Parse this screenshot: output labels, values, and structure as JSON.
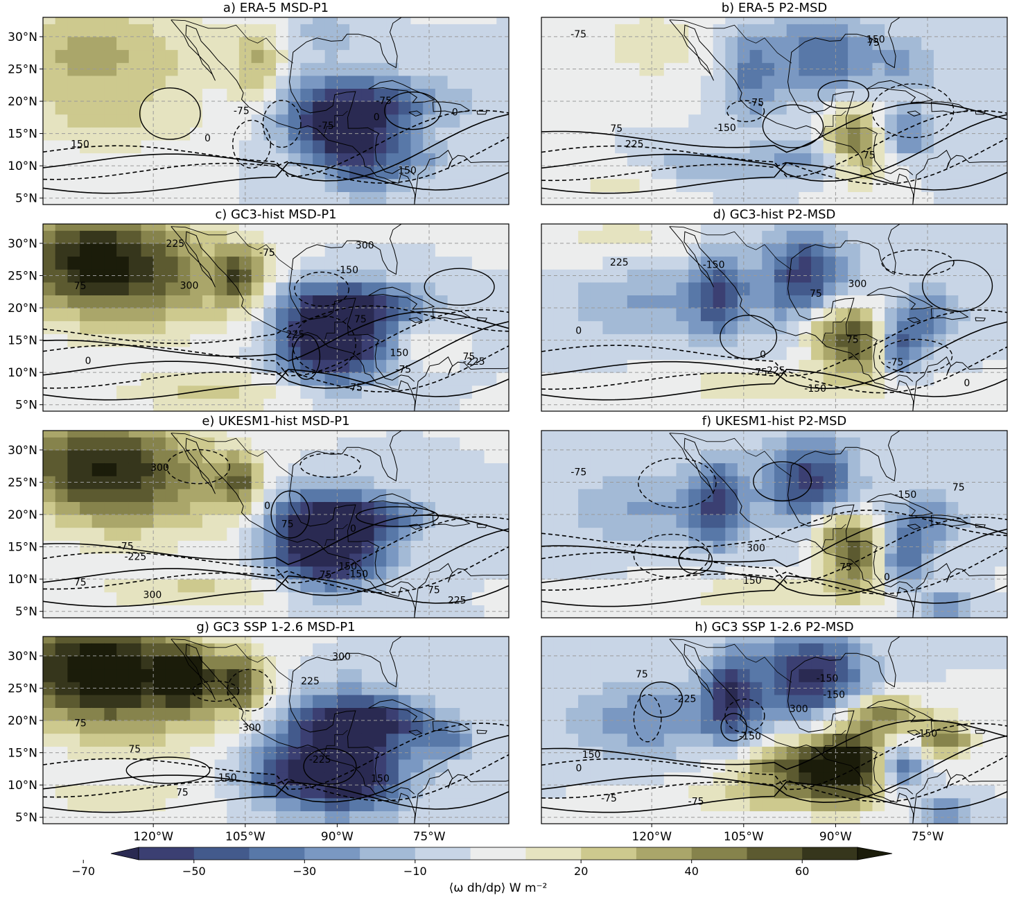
{
  "chart_data": {
    "type": "heatmap",
    "figure_description_free": true,
    "panels": [
      {
        "title": "a) ERA-5 MSD-P1",
        "contour_labels": [
          "150",
          "0",
          "150",
          "-75",
          "-75",
          "0",
          "0",
          "-75"
        ]
      },
      {
        "title": "b) ERA-5 P2-MSD",
        "contour_labels": [
          "-75",
          "225",
          "150",
          "-150",
          "-75",
          "75",
          "75",
          "75"
        ]
      },
      {
        "title": "c) GC3-hist MSD-P1",
        "contour_labels": [
          "75",
          "75",
          "-150",
          "-225",
          "300",
          "300",
          "225",
          "150",
          "225",
          "75",
          "0",
          "-75",
          "-75",
          "-75"
        ]
      },
      {
        "title": "d) GC3-hist P2-MSD",
        "contour_labels": [
          "0",
          "-75",
          "75",
          "-150",
          "225",
          "300",
          "-150",
          "-225",
          "0",
          "75",
          "-75",
          "0"
        ]
      },
      {
        "title": "e) UKESM1-hist MSD-P1",
        "contour_labels": [
          "75",
          "75",
          "75",
          "300",
          "225",
          "0",
          "-225",
          "300",
          "-150",
          "150",
          "75",
          "-75",
          "0"
        ]
      },
      {
        "title": "f) UKESM1-hist P2-MSD",
        "contour_labels": [
          "-75",
          "150",
          "300",
          "-150",
          "0",
          "75",
          "75"
        ]
      },
      {
        "title": "g) GC3 SSP 1-2.6 MSD-P1",
        "contour_labels": [
          "75",
          "75",
          "150",
          "-300",
          "-225",
          "300",
          "150",
          "225",
          "75"
        ]
      },
      {
        "title": "h) GC3 SSP 1-2.6 P2-MSD",
        "contour_labels": [
          "0",
          "-75",
          "-75",
          "150",
          "-150",
          "-150",
          "300",
          "-225",
          "-150",
          "-150",
          "75"
        ]
      }
    ],
    "y_ticks": [
      "30°N",
      "25°N",
      "20°N",
      "15°N",
      "10°N",
      "5°N"
    ],
    "x_ticks": [
      "120°W",
      "105°W",
      "90°W",
      "75°W"
    ],
    "colorbar": {
      "label": "⟨ω dh/dp⟩ W m⁻²",
      "ticks": [
        "−70",
        "−50",
        "−30",
        "−10",
        "20",
        "40",
        "60"
      ],
      "levels": [
        -70,
        -60,
        -50,
        -40,
        -30,
        -20,
        -10,
        0,
        10,
        20,
        30,
        40,
        50,
        60,
        70
      ],
      "colors": [
        "#2a2a52",
        "#3b3f72",
        "#435a8c",
        "#5878a8",
        "#7a98c2",
        "#a3bad6",
        "#c8d5e6",
        "#eceded",
        "#e5e3c0",
        "#cdc98e",
        "#aaa66a",
        "#86834c",
        "#5c5a30",
        "#36361c",
        "#1b1c0a"
      ]
    }
  }
}
